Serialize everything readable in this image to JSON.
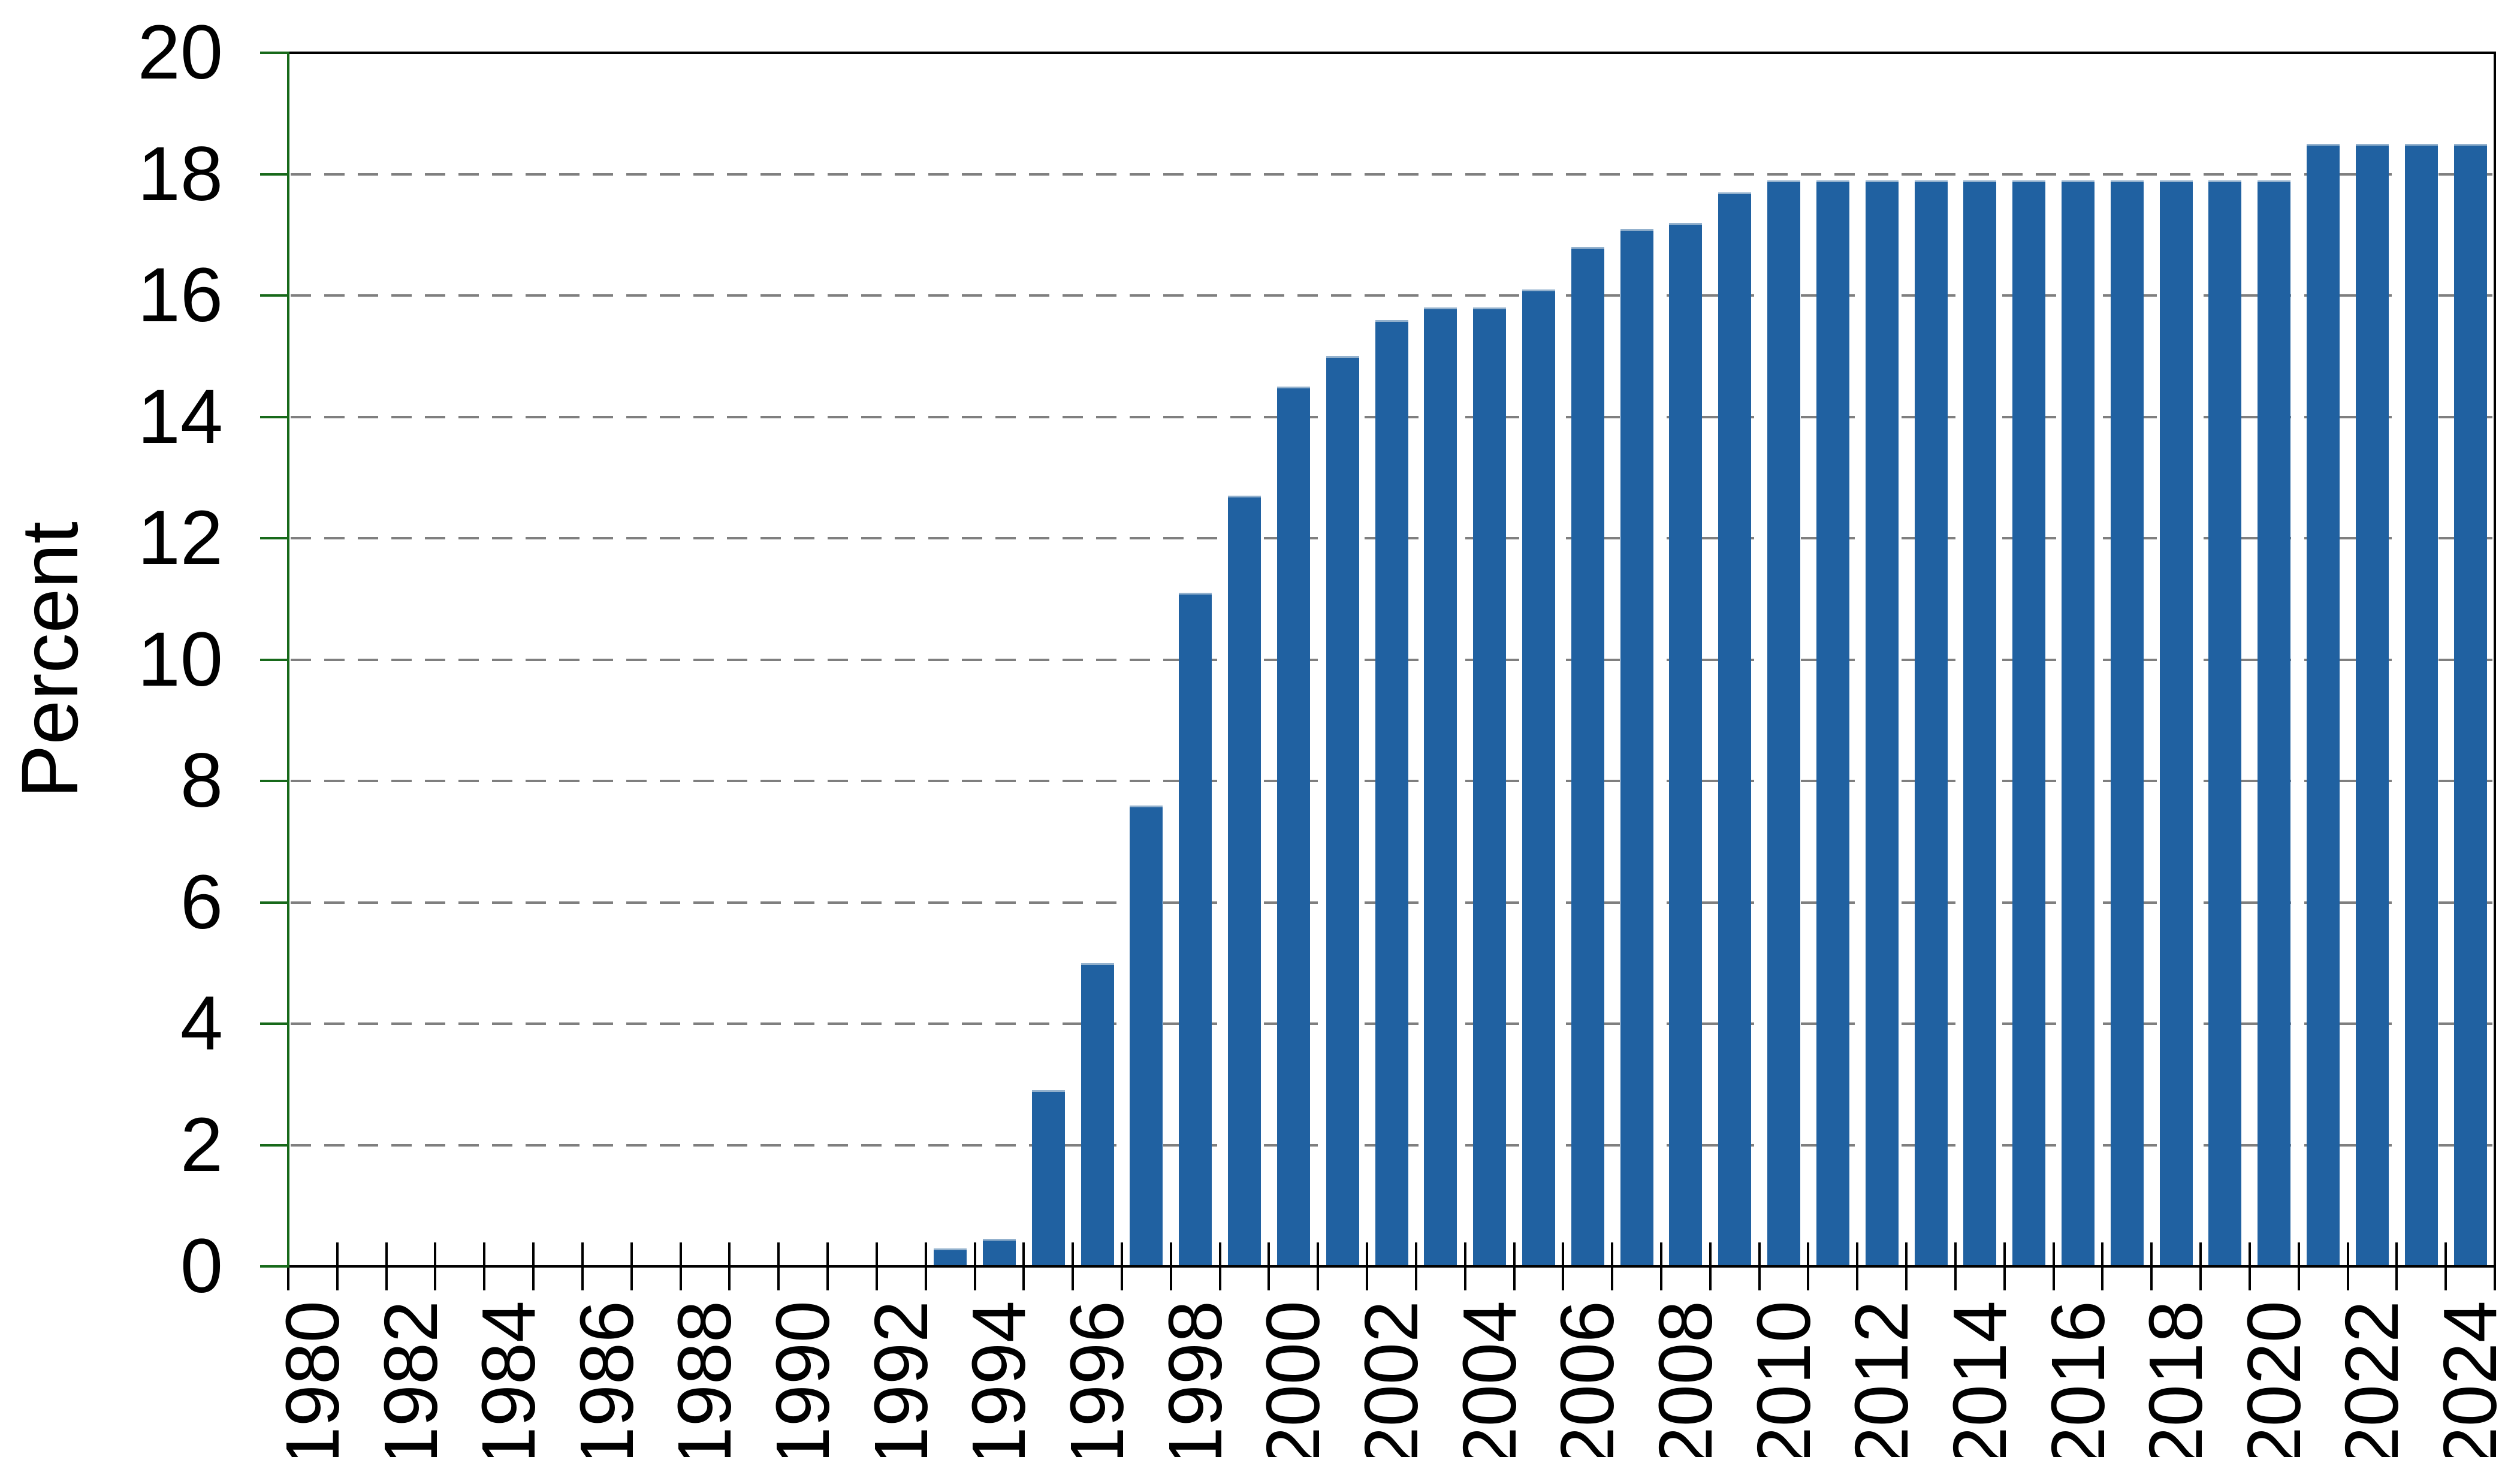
{
  "chart_data": {
    "type": "bar",
    "title": "",
    "xlabel": "",
    "ylabel": "Percent",
    "ylim": [
      0,
      20
    ],
    "y_ticks": [
      0,
      2,
      4,
      6,
      8,
      10,
      12,
      14,
      16,
      18,
      20
    ],
    "grid": "horizontal dashed gray lines at y = 2 through 18, behind bars",
    "legend_position": "none",
    "x_tick_style": "category boundary ticks crossing the axis, one per year",
    "x_label_step": 2,
    "x_label_rotation_deg": 90,
    "categories": [
      1980,
      1981,
      1982,
      1983,
      1984,
      1985,
      1986,
      1987,
      1988,
      1989,
      1990,
      1991,
      1992,
      1993,
      1994,
      1995,
      1996,
      1997,
      1998,
      1999,
      2000,
      2001,
      2002,
      2003,
      2004,
      2005,
      2006,
      2007,
      2008,
      2009,
      2010,
      2011,
      2012,
      2013,
      2014,
      2015,
      2016,
      2017,
      2018,
      2019,
      2020,
      2021,
      2022,
      2023,
      2024
    ],
    "values": [
      0,
      0,
      0,
      0,
      0,
      0,
      0,
      0,
      0,
      0,
      0,
      0,
      0,
      0.3,
      0.45,
      2.9,
      5.0,
      7.6,
      11.1,
      12.7,
      14.5,
      15.0,
      15.6,
      15.8,
      15.8,
      16.1,
      16.8,
      17.1,
      17.2,
      17.7,
      17.9,
      17.9,
      17.9,
      17.9,
      17.9,
      17.9,
      17.9,
      17.9,
      17.9,
      17.9,
      17.9,
      18.5,
      18.5,
      18.5,
      18.5
    ],
    "colors": {
      "bar": "#2061a1",
      "bar_top_edge": "#93b1cd",
      "y_axis_and_ticks": "#17691a",
      "x_axis_and_ticks": "#000000",
      "top_right_spines": "#000000",
      "gridline": "#7f7f7f",
      "text": "#000000",
      "background": "#ffffff"
    }
  }
}
